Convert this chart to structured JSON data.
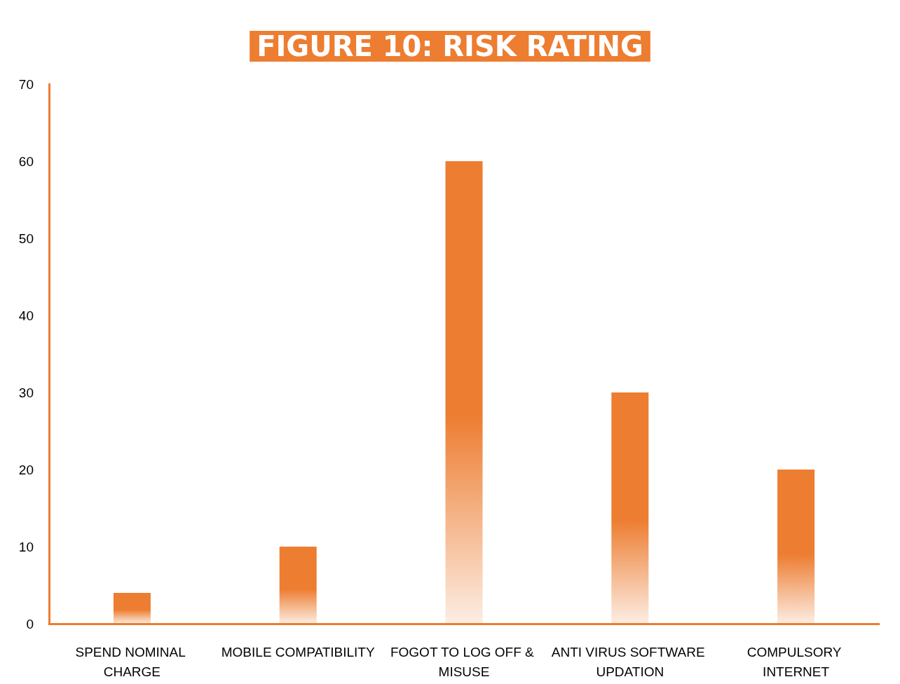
{
  "chart_data": {
    "type": "bar",
    "title": "FIGURE 10: RISK RATING",
    "categories": [
      "SPEND NOMINAL CHARGE",
      "MOBILE COMPATIBILITY",
      "FOGOT TO LOG OFF & MISUSE",
      "ANTI VIRUS SOFTWARE UPDATION",
      "COMPULSORY INTERNET"
    ],
    "values": [
      4,
      10,
      60,
      30,
      20
    ],
    "color": "#ed7d31",
    "ylim": [
      0,
      70
    ],
    "yticks": [
      0,
      10,
      20,
      30,
      40,
      50,
      60,
      70
    ],
    "grid": false
  }
}
